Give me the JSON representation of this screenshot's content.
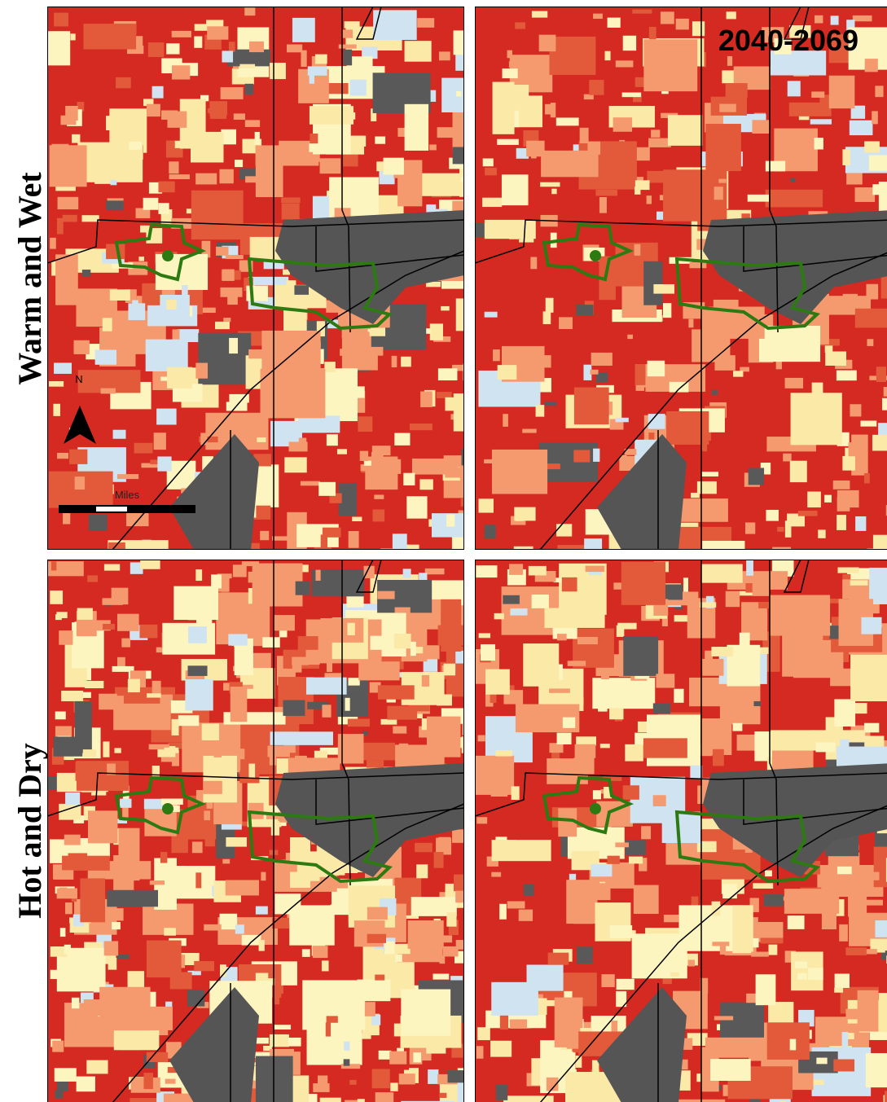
{
  "row_labels": [
    "Warm and Wet",
    "Hot and Dry"
  ],
  "period_label": "2040-2069",
  "north_arrow": {
    "label": "N"
  },
  "scale_bar": {
    "unit": "Miles"
  }
}
